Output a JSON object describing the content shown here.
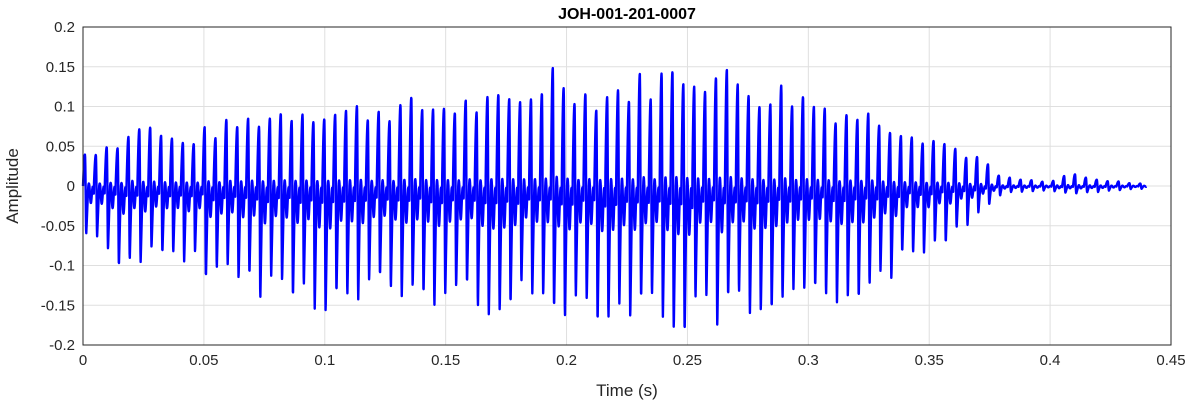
{
  "chart_data": {
    "type": "line",
    "title": "JOH-001-201-0007",
    "xlabel": "Time (s)",
    "ylabel": "Amplitude",
    "xlim": [
      0,
      0.45
    ],
    "ylim": [
      -0.2,
      0.2
    ],
    "grid": true,
    "x_ticks": [
      "0",
      "0.05",
      "0.1",
      "0.15",
      "0.2",
      "0.25",
      "0.3",
      "0.35",
      "0.4",
      "0.45"
    ],
    "y_ticks": [
      "0.2",
      "0.15",
      "0.1",
      "0.05",
      "0",
      "-0.05",
      "-0.1",
      "-0.15",
      "-0.2"
    ],
    "series": [
      {
        "color": "#0000ff",
        "envelope": {
          "x": [
            0.0,
            0.019,
            0.02,
            0.04,
            0.05,
            0.07,
            0.09,
            0.105,
            0.12,
            0.15,
            0.18,
            0.195,
            0.21,
            0.24,
            0.25,
            0.27,
            0.283,
            0.29,
            0.31,
            0.33,
            0.35,
            0.37,
            0.38,
            0.4,
            0.407,
            0.42,
            0.44
          ],
          "max": [
            0.045,
            0.07,
            0.095,
            0.06,
            0.075,
            0.095,
            0.11,
            0.105,
            0.11,
            0.115,
            0.118,
            0.165,
            0.125,
            0.155,
            0.165,
            0.15,
            0.13,
            0.135,
            0.11,
            0.095,
            0.07,
            0.04,
            0.012,
            0.005,
            0.017,
            0.008,
            0.003
          ],
          "min": [
            -0.065,
            -0.115,
            -0.1,
            -0.11,
            -0.115,
            -0.14,
            -0.15,
            -0.17,
            -0.15,
            -0.16,
            -0.165,
            -0.165,
            -0.17,
            -0.18,
            -0.195,
            -0.18,
            -0.195,
            -0.185,
            -0.16,
            -0.13,
            -0.09,
            -0.04,
            -0.01,
            -0.005,
            -0.012,
            -0.008,
            -0.003
          ]
        },
        "period": 0.0045,
        "end": 0.44
      }
    ]
  }
}
